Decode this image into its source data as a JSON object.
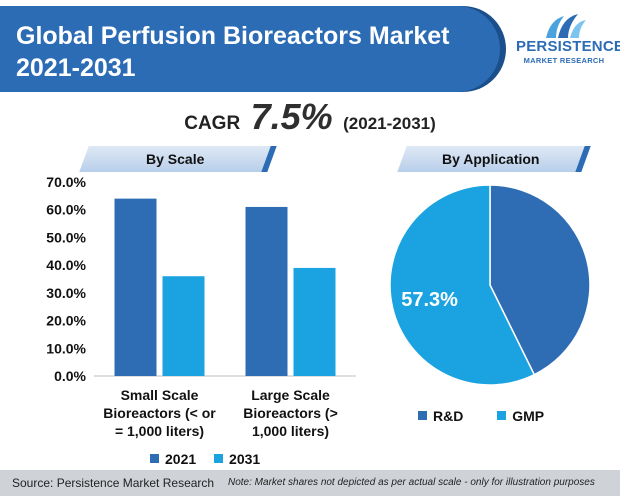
{
  "header": {
    "title_line1": "Global Perfusion Bioreactors Market",
    "title_line2": "2021-2031"
  },
  "logo": {
    "word1": "PERSISTENCE",
    "word2": "MARKET RESEARCH"
  },
  "cagr": {
    "label": "CAGR",
    "value": "7.5%",
    "period": "(2021-2031)"
  },
  "sections": {
    "scale": "By Scale",
    "application": "By Application"
  },
  "colors": {
    "brand": "#2b6cb5",
    "series_2021": "#2e6db4",
    "series_2031": "#1aa3e0",
    "rd": "#2e6db4",
    "gmp": "#1aa3e0"
  },
  "chart_data": [
    {
      "type": "bar",
      "categories": [
        [
          "Small Scale",
          "Bioreactors (< or",
          "= 1,000 liters)"
        ],
        [
          "Large Scale",
          "Bioreactors (>",
          "1,000 liters)"
        ]
      ],
      "series": [
        {
          "name": "2021",
          "values": [
            64.0,
            61.0
          ]
        },
        {
          "name": "2031",
          "values": [
            36.0,
            39.0
          ]
        }
      ],
      "ylim": [
        0,
        70
      ],
      "yticks": [
        "0.0%",
        "10.0%",
        "20.0%",
        "30.0%",
        "40.0%",
        "50.0%",
        "60.0%",
        "70.0%"
      ],
      "ytick_values": [
        0,
        10,
        20,
        30,
        40,
        50,
        60,
        70
      ],
      "title": "",
      "xlabel": "",
      "ylabel": "",
      "grid": false,
      "legend": "bottom"
    },
    {
      "type": "pie",
      "slices": [
        {
          "name": "R&D",
          "value": 42.7,
          "label": ""
        },
        {
          "name": "GMP",
          "value": 57.3,
          "label": "57.3%"
        }
      ],
      "legend": "bottom"
    }
  ],
  "footer": {
    "source": "Source: Persistence Market Research",
    "note": "Note: Market shares not depicted as per actual scale - only for illustration purposes"
  }
}
